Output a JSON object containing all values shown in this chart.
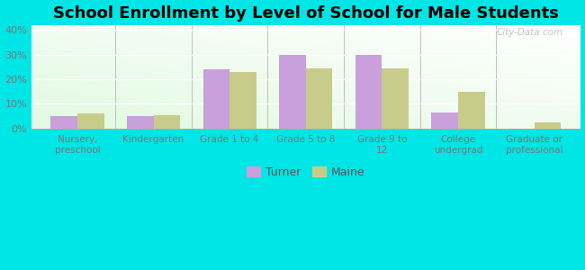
{
  "title": "School Enrollment by Level of School for Male Students",
  "categories": [
    "Nursery,\npreschool",
    "Kindergarten",
    "Grade 1 to 4",
    "Grade 5 to 8",
    "Grade 9 to\n12",
    "College\nundergrad",
    "Graduate or\nprofessional"
  ],
  "turner_values": [
    5,
    5,
    24,
    30,
    30,
    6.5,
    0
  ],
  "maine_values": [
    6,
    5.5,
    23,
    24.5,
    24.5,
    15,
    2.5
  ],
  "turner_color": "#c9a0dc",
  "maine_color": "#c8cc8a",
  "background_color": "#00e5e5",
  "ylim": [
    0,
    42
  ],
  "yticks": [
    0,
    10,
    20,
    30,
    40
  ],
  "ytick_labels": [
    "0%",
    "10%",
    "20%",
    "30%",
    "40%"
  ],
  "title_fontsize": 13,
  "legend_labels": [
    "Turner",
    "Maine"
  ],
  "bar_width": 0.35,
  "fig_width": 6.5,
  "fig_height": 3.0
}
